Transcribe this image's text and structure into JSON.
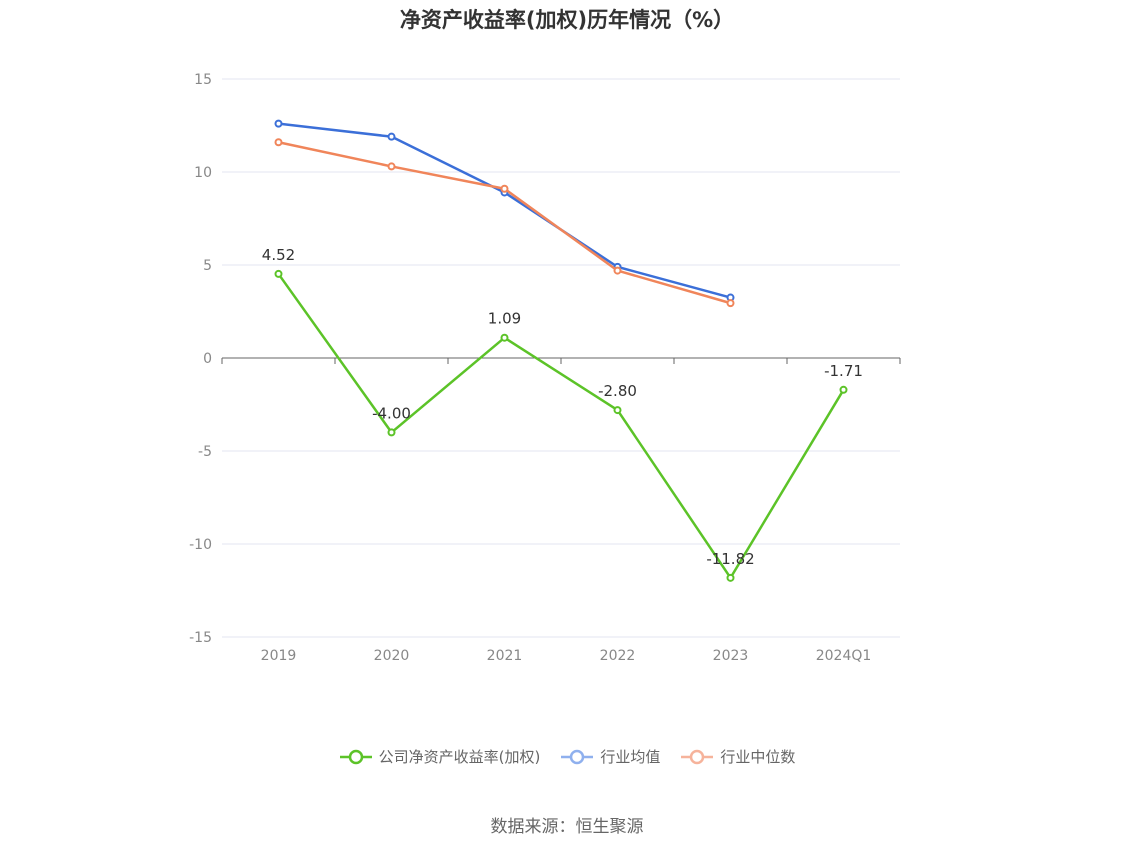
{
  "chart_data": {
    "type": "line",
    "title": "净资产收益率(加权)历年情况（%）",
    "categories": [
      "2019",
      "2020",
      "2021",
      "2022",
      "2023",
      "2024Q1"
    ],
    "ylim": [
      -15,
      15
    ],
    "yticks": [
      15,
      10,
      5,
      0,
      -5,
      -10,
      -15
    ],
    "grid": true,
    "legend_position": "bottom",
    "series": [
      {
        "name": "公司净资产收益率(加权)",
        "color": "#5cc328",
        "values": [
          4.52,
          -4.0,
          1.09,
          -2.8,
          -11.82,
          -1.71
        ],
        "labels": [
          "4.52",
          "-4.00",
          "1.09",
          "-2.80",
          "-11.82",
          "-1.71"
        ]
      },
      {
        "name": "行业均值",
        "color": "#3b6fd8",
        "values": [
          12.6,
          11.9,
          8.9,
          4.9,
          3.25,
          null
        ]
      },
      {
        "name": "行业中位数",
        "color": "#f0855a",
        "values": [
          11.6,
          10.3,
          9.1,
          4.7,
          2.95,
          null
        ]
      }
    ]
  },
  "legend_colors": {
    "公司净资产收益率(加权)": "#5cc328",
    "行业均值": "#8fb0ee",
    "行业中位数": "#f6b39b"
  },
  "source": "数据来源：恒生聚源"
}
